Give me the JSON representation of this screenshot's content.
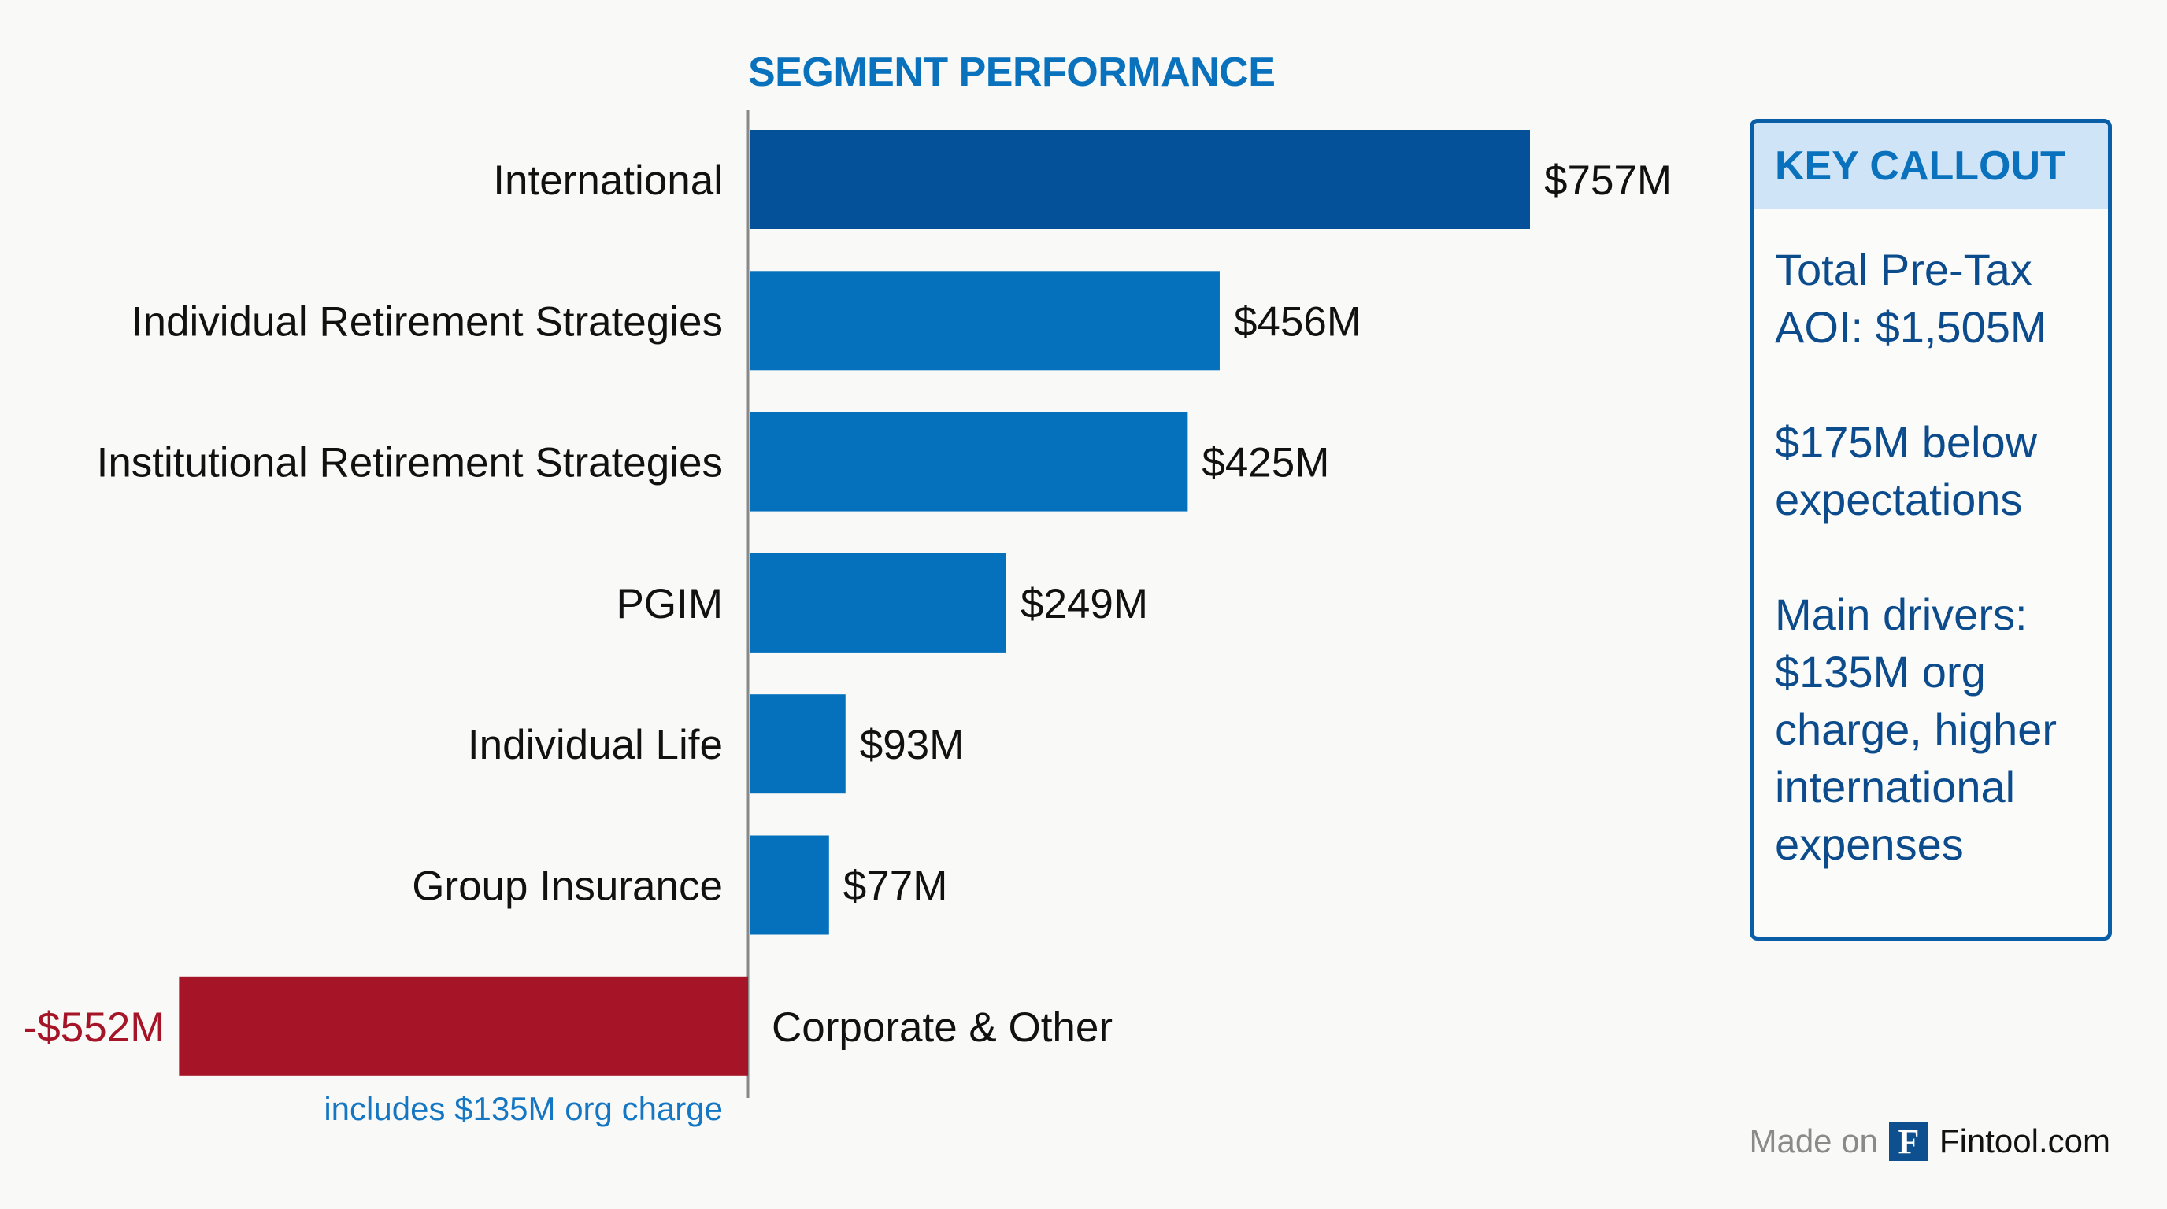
{
  "chart_data": {
    "type": "bar",
    "orientation": "horizontal",
    "title": "SEGMENT PERFORMANCE",
    "categories": [
      "International",
      "Individual Retirement Strategies",
      "Institutional Retirement Strategies",
      "PGIM",
      "Individual Life",
      "Group Insurance",
      "Corporate & Other"
    ],
    "values": [
      757,
      456,
      425,
      249,
      93,
      77,
      -552
    ],
    "data_labels": [
      "$757M",
      "$456M",
      "$425M",
      "$249M",
      "$93M",
      "$77M",
      "-$552M"
    ],
    "unit": "$M",
    "colors": {
      "highlight": "#04519a",
      "positive": "#0570bb",
      "negative": "#a51427"
    },
    "annotations": [
      {
        "category": "Corporate & Other",
        "text": "includes $135M org charge"
      }
    ],
    "grid": false,
    "legend": "none"
  },
  "callout": {
    "title": "KEY CALLOUT",
    "lines": [
      "Total Pre-Tax AOI: $1,505M",
      "$175M below expectations",
      "Main drivers: $135M org charge, higher international expenses"
    ]
  },
  "footer": {
    "made_on": "Made on",
    "logo_letter": "F",
    "brand": "Fintool.com"
  }
}
